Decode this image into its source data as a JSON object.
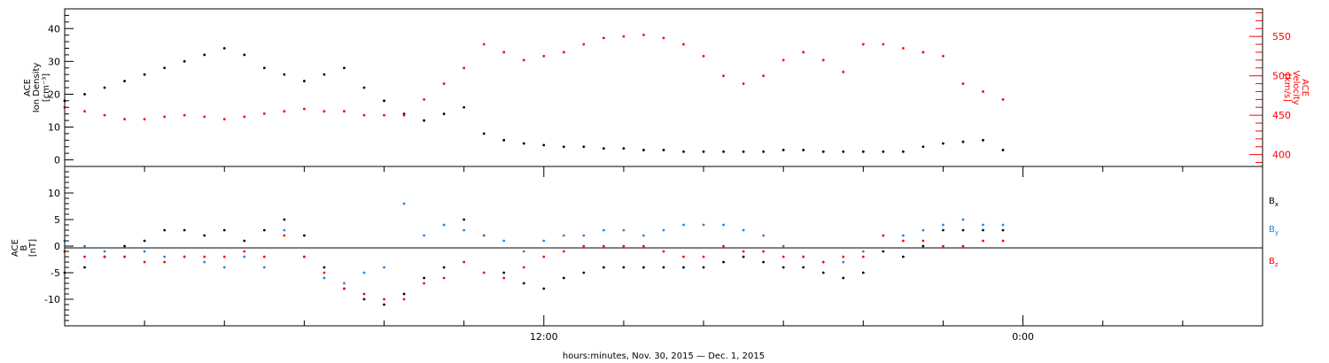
{
  "chart_data": [
    {
      "type": "scatter",
      "panel": "top",
      "ylabel_left": [
        "ACE",
        "Ion Density",
        "[cm⁻³]"
      ],
      "ylabel_right": [
        "ACE",
        "Velocity",
        "[km/s]"
      ],
      "ylim_left": [
        -2,
        46
      ],
      "yticks_left": [
        0,
        10,
        20,
        30,
        40
      ],
      "ylim_right": [
        385,
        585
      ],
      "yticks_right": [
        400,
        450,
        500,
        550
      ],
      "series": [
        {
          "axis": "left",
          "color": "#000000",
          "x": [
            0.0,
            0.5,
            1.0,
            1.5,
            2.0,
            2.5,
            3.0,
            3.5,
            4.0,
            4.5,
            5.0,
            5.5,
            6.0,
            6.5,
            7.0,
            7.5,
            8.0,
            8.5,
            9.0,
            9.5,
            10.0,
            10.5,
            11.0,
            11.5,
            12.0,
            12.5,
            13.0,
            13.5,
            14.0,
            14.5,
            15.0,
            15.5,
            16.0,
            16.5,
            17.0,
            17.5,
            18.0,
            18.5,
            19.0,
            19.5,
            20.0,
            20.5,
            21.0,
            21.5,
            22.0,
            22.5,
            23.0,
            23.5
          ],
          "y": [
            18,
            20,
            22,
            24,
            26,
            28,
            30,
            32,
            34,
            32,
            28,
            26,
            24,
            26,
            28,
            22,
            18,
            14,
            12,
            14,
            16,
            8,
            6,
            5,
            4.5,
            4,
            4,
            3.5,
            3.5,
            3,
            3,
            2.5,
            2.5,
            2.5,
            2.5,
            2.5,
            3,
            3,
            2.5,
            2.5,
            2.5,
            2.5,
            2.5,
            4,
            5,
            5.5,
            6,
            3
          ]
        },
        {
          "axis": "right",
          "color": "#ff0000",
          "x": [
            0.0,
            0.5,
            1.0,
            1.5,
            2.0,
            2.5,
            3.0,
            3.5,
            4.0,
            4.5,
            5.0,
            5.5,
            6.0,
            6.5,
            7.0,
            7.5,
            8.0,
            8.5,
            9.0,
            9.5,
            10.0,
            10.5,
            11.0,
            11.5,
            12.0,
            12.5,
            13.0,
            13.5,
            14.0,
            14.5,
            15.0,
            15.5,
            16.0,
            16.5,
            17.0,
            17.5,
            18.0,
            18.5,
            19.0,
            19.5,
            20.0,
            20.5,
            21.0,
            21.5,
            22.0,
            22.5,
            23.0,
            23.5
          ],
          "y": [
            460,
            455,
            450,
            445,
            445,
            448,
            450,
            448,
            445,
            448,
            452,
            455,
            458,
            455,
            455,
            450,
            450,
            450,
            470,
            490,
            510,
            540,
            530,
            520,
            525,
            530,
            540,
            548,
            550,
            552,
            548,
            540,
            525,
            500,
            490,
            500,
            520,
            530,
            520,
            505,
            540,
            540,
            535,
            530,
            525,
            490,
            480,
            470
          ]
        }
      ]
    },
    {
      "type": "scatter",
      "panel": "bottom",
      "ylabel": [
        "ACE",
        "B",
        "[nT]"
      ],
      "ylim": [
        -15,
        15
      ],
      "yticks": [
        -10,
        -5,
        0,
        5,
        10
      ],
      "xlabel": "hours:minutes, Nov. 30, 2015 — Dec.  1, 2015",
      "xtick_labels": [
        {
          "x": 12,
          "label": "12:00"
        },
        {
          "x": 24,
          "label": "0:00"
        }
      ],
      "xlim": [
        0,
        30
      ],
      "legend_position": "right",
      "series": [
        {
          "name": "B",
          "subscript": "x",
          "color": "#000000",
          "x": [
            0.0,
            0.5,
            1.0,
            1.5,
            2.0,
            2.5,
            3.0,
            3.5,
            4.0,
            4.5,
            5.0,
            5.5,
            6.0,
            6.5,
            7.0,
            7.5,
            8.0,
            8.5,
            9.0,
            9.5,
            10.0,
            10.5,
            11.0,
            11.5,
            12.0,
            12.5,
            13.0,
            13.5,
            14.0,
            14.5,
            15.0,
            15.5,
            16.0,
            16.5,
            17.0,
            17.5,
            18.0,
            18.5,
            19.0,
            19.5,
            20.0,
            20.5,
            21.0,
            21.5,
            22.0,
            22.5,
            23.0,
            23.5
          ],
          "y": [
            -5,
            -4,
            -2,
            0,
            1,
            3,
            3,
            2,
            3,
            1,
            3,
            5,
            2,
            -4,
            -8,
            -10,
            -11,
            -9,
            -6,
            -4,
            5,
            2,
            -5,
            -7,
            -8,
            -6,
            -5,
            -4,
            -4,
            -4,
            -4,
            -4,
            -4,
            -3,
            -2,
            -3,
            -4,
            -4,
            -5,
            -6,
            -5,
            -1,
            -2,
            0,
            3,
            3,
            3,
            3
          ]
        },
        {
          "name": "B",
          "subscript": "y",
          "color": "#1e86dc",
          "x": [
            0.0,
            0.5,
            1.0,
            1.5,
            2.0,
            2.5,
            3.0,
            3.5,
            4.0,
            4.5,
            5.0,
            5.5,
            6.0,
            6.5,
            7.0,
            7.5,
            8.0,
            8.5,
            9.0,
            9.5,
            10.0,
            10.5,
            11.0,
            11.5,
            12.0,
            12.5,
            13.0,
            13.5,
            14.0,
            14.5,
            15.0,
            15.5,
            16.0,
            16.5,
            17.0,
            17.5,
            18.0,
            18.5,
            19.0,
            19.5,
            20.0,
            20.5,
            21.0,
            21.5,
            22.0,
            22.5,
            23.0,
            23.5
          ],
          "y": [
            1,
            0,
            -1,
            -2,
            -1,
            -2,
            -2,
            -3,
            -4,
            -2,
            -4,
            3,
            -2,
            -6,
            -7,
            -5,
            -4,
            8,
            2,
            4,
            3,
            2,
            1,
            -1,
            1,
            2,
            2,
            3,
            3,
            2,
            3,
            4,
            4,
            4,
            3,
            2,
            0,
            -2,
            -3,
            -3,
            -1,
            2,
            2,
            3,
            4,
            5,
            4,
            4
          ]
        },
        {
          "name": "B",
          "subscript": "z",
          "color": "#ff0000",
          "x": [
            0.0,
            0.5,
            1.0,
            1.5,
            2.0,
            2.5,
            3.0,
            3.5,
            4.0,
            4.5,
            5.0,
            5.5,
            6.0,
            6.5,
            7.0,
            7.5,
            8.0,
            8.5,
            9.0,
            9.5,
            10.0,
            10.5,
            11.0,
            11.5,
            12.0,
            12.5,
            13.0,
            13.5,
            14.0,
            14.5,
            15.0,
            15.5,
            16.0,
            16.5,
            17.0,
            17.5,
            18.0,
            18.5,
            19.0,
            19.5,
            20.0,
            20.5,
            21.0,
            21.5,
            22.0,
            22.5,
            23.0,
            23.5
          ],
          "y": [
            -1,
            -2,
            -2,
            -2,
            -3,
            -3,
            -2,
            -2,
            -2,
            -1,
            -2,
            2,
            -2,
            -5,
            -8,
            -9,
            -10,
            -10,
            -7,
            -6,
            -3,
            -5,
            -6,
            -4,
            -2,
            -1,
            0,
            0,
            0,
            0,
            -1,
            -2,
            -2,
            0,
            -1,
            -1,
            -2,
            -2,
            -3,
            -2,
            -2,
            2,
            1,
            1,
            0,
            0,
            1,
            1
          ]
        }
      ]
    }
  ]
}
